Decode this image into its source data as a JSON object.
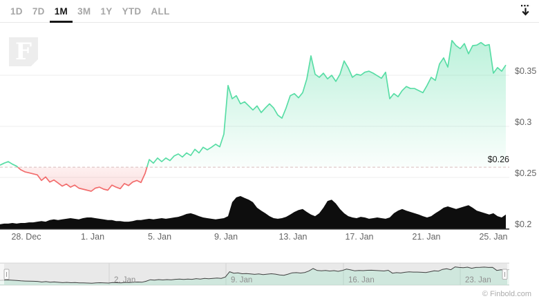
{
  "header": {
    "tabs": [
      {
        "label": "1D",
        "active": false
      },
      {
        "label": "7D",
        "active": false
      },
      {
        "label": "1M",
        "active": true
      },
      {
        "label": "3M",
        "active": false
      },
      {
        "label": "1Y",
        "active": false
      },
      {
        "label": "YTD",
        "active": false
      },
      {
        "label": "ALL",
        "active": false
      }
    ],
    "download_icon": "download-icon"
  },
  "watermark": {
    "letter": "F"
  },
  "credit": "© Finbold.com",
  "chart_data": {
    "type": "area",
    "title": "",
    "legend": "none",
    "grid": "horizontal",
    "threshold": {
      "value": 0.26,
      "label": "$0.26"
    },
    "y_axis": {
      "position": "right",
      "range": [
        0.2,
        0.4
      ],
      "ticks": [
        {
          "value": 0.35,
          "label": "$0.35"
        },
        {
          "value": 0.3,
          "label": "$0.3"
        },
        {
          "value": 0.25,
          "label": "$0.25"
        },
        {
          "value": 0.2,
          "label": "$0.2"
        }
      ]
    },
    "x_axis": {
      "tick_labels": [
        "28. Dec",
        "1. Jan",
        "5. Jan",
        "9. Jan",
        "13. Jan",
        "17. Jan",
        "21. Jan",
        "25. Jan"
      ]
    },
    "series": {
      "name": "price",
      "unit": "USD",
      "start": "26. Dec 10:00",
      "step_hours": 6,
      "values": [
        0.262,
        0.264,
        0.2655,
        0.263,
        0.261,
        0.2575,
        0.2555,
        0.2545,
        0.2535,
        0.2525,
        0.247,
        0.2505,
        0.2455,
        0.2475,
        0.2445,
        0.2415,
        0.2435,
        0.2405,
        0.2425,
        0.2395,
        0.2385,
        0.2375,
        0.2365,
        0.2395,
        0.2405,
        0.2385,
        0.2375,
        0.2425,
        0.2405,
        0.239,
        0.244,
        0.242,
        0.2455,
        0.247,
        0.245,
        0.254,
        0.2675,
        0.264,
        0.269,
        0.2655,
        0.269,
        0.2665,
        0.271,
        0.273,
        0.27,
        0.274,
        0.2715,
        0.2775,
        0.274,
        0.2795,
        0.277,
        0.2795,
        0.2825,
        0.28,
        0.2925,
        0.34,
        0.327,
        0.33,
        0.322,
        0.324,
        0.32,
        0.316,
        0.32,
        0.3135,
        0.318,
        0.322,
        0.318,
        0.311,
        0.308,
        0.318,
        0.33,
        0.332,
        0.328,
        0.333,
        0.3465,
        0.369,
        0.351,
        0.348,
        0.352,
        0.3465,
        0.35,
        0.344,
        0.351,
        0.364,
        0.357,
        0.348,
        0.351,
        0.35,
        0.353,
        0.354,
        0.352,
        0.3495,
        0.347,
        0.353,
        0.327,
        0.332,
        0.329,
        0.335,
        0.339,
        0.337,
        0.337,
        0.335,
        0.333,
        0.34,
        0.348,
        0.345,
        0.361,
        0.367,
        0.358,
        0.384,
        0.379,
        0.376,
        0.381,
        0.371,
        0.379,
        0.3795,
        0.382,
        0.379,
        0.38,
        0.352,
        0.3575,
        0.354,
        0.36
      ]
    },
    "volume": {
      "name": "volume",
      "unit": "percent_of_max",
      "values": [
        13,
        15,
        15,
        17,
        15,
        17,
        17,
        19,
        19,
        21,
        23,
        21,
        26,
        28,
        26,
        28,
        30,
        32,
        30,
        28,
        32,
        34,
        34,
        32,
        30,
        28,
        26,
        26,
        23,
        23,
        21,
        21,
        23,
        26,
        26,
        28,
        30,
        28,
        30,
        32,
        30,
        32,
        34,
        36,
        40,
        45,
        47,
        43,
        38,
        34,
        32,
        30,
        28,
        30,
        32,
        38,
        81,
        96,
        100,
        94,
        89,
        81,
        64,
        55,
        47,
        38,
        32,
        30,
        32,
        36,
        43,
        51,
        57,
        60,
        51,
        43,
        38,
        47,
        64,
        85,
        89,
        77,
        60,
        47,
        38,
        34,
        32,
        36,
        34,
        30,
        32,
        34,
        32,
        30,
        34,
        47,
        55,
        60,
        55,
        51,
        47,
        43,
        38,
        34,
        38,
        47,
        55,
        64,
        68,
        64,
        60,
        64,
        68,
        72,
        64,
        55,
        51,
        47,
        43,
        47,
        38,
        34,
        43
      ]
    },
    "navigator": {
      "tick_labels": [
        "2. Jan",
        "9. Jan",
        "16. Jan",
        "23. Jan"
      ]
    },
    "colors": {
      "up": "#58dda5",
      "down": "#f26c6c",
      "volume": "#0e0e0e",
      "threshold_line": "#dcc3c3",
      "threshold_label": "#1a1a1a",
      "grid": "#ededed",
      "axis_line": "#2b2b2b",
      "axis_label": "#646464",
      "nav_bg": "#e9e9e9",
      "nav_border": "#d8d8d8",
      "nav_grid": "#d2d2d2",
      "nav_label": "#8f8f8f",
      "nav_line": "#3f3f3f",
      "credit": "#ababab",
      "active_tab": "#161616",
      "inactive_tab": "#a6a6a6"
    }
  }
}
